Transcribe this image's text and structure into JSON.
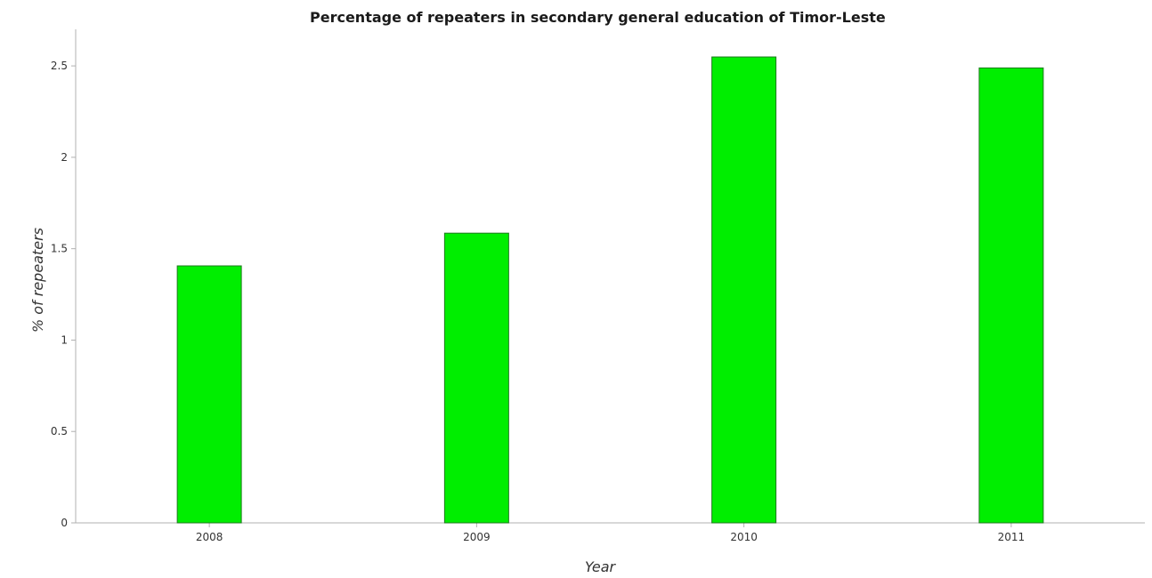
{
  "chart_data": {
    "type": "bar",
    "title": "Percentage of repeaters in secondary general education of Timor-Leste",
    "xlabel": "Year",
    "ylabel": "% of repeaters",
    "categories": [
      "2008",
      "2009",
      "2010",
      "2011"
    ],
    "values": [
      1.406,
      1.585,
      2.549,
      2.489
    ],
    "ylim": [
      0,
      2.7
    ],
    "yticks": [
      0,
      0.5,
      1,
      1.5,
      2,
      2.5
    ],
    "ytick_labels": [
      "0",
      "0.5",
      "1",
      "1.5",
      "2",
      "2.5"
    ],
    "grid": false,
    "legend": "none",
    "bar_color": "#00ee00"
  }
}
